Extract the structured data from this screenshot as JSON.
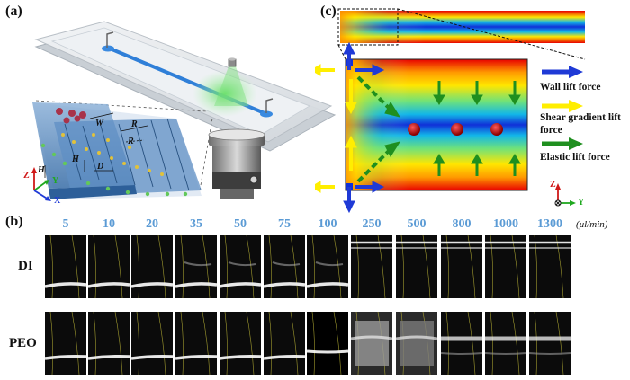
{
  "panel_a": {
    "label": "(a)",
    "dim_W": "W",
    "dim_R1": "R",
    "dim_R2": "R",
    "dim_H1": "H",
    "dim_H2": "H",
    "dim_D": "D",
    "axis_z": "Z",
    "axis_y": "Y",
    "axis_x": "X"
  },
  "panel_b": {
    "label": "(b)",
    "flow_rates": [
      "5",
      "10",
      "20",
      "35",
      "50",
      "75",
      "100",
      "250",
      "500",
      "800",
      "1000",
      "1300"
    ],
    "unit": "(μl/min)",
    "rows": [
      {
        "label": "DI",
        "style": [
          "narrow",
          "narrow",
          "narrow",
          "narrow",
          "narrow",
          "narrow",
          "narrow",
          "top",
          "top",
          "top",
          "top",
          "top"
        ]
      },
      {
        "label": "PEO",
        "style": [
          "narrow",
          "narrow",
          "narrow",
          "narrow",
          "narrow",
          "narrow",
          "dark",
          "diffuse",
          "diffuse",
          "mid",
          "mid",
          "mid"
        ]
      }
    ]
  },
  "panel_c": {
    "label": "(c)",
    "legend": [
      {
        "text": "Wall lift force",
        "color": "#1f3ad6"
      },
      {
        "text": "Shear gradient lift force",
        "color": "#ffee00"
      },
      {
        "text": "Elastic lift force",
        "color": "#1f8f1f"
      }
    ],
    "axis_z": "Z",
    "axis_y": "Y"
  }
}
